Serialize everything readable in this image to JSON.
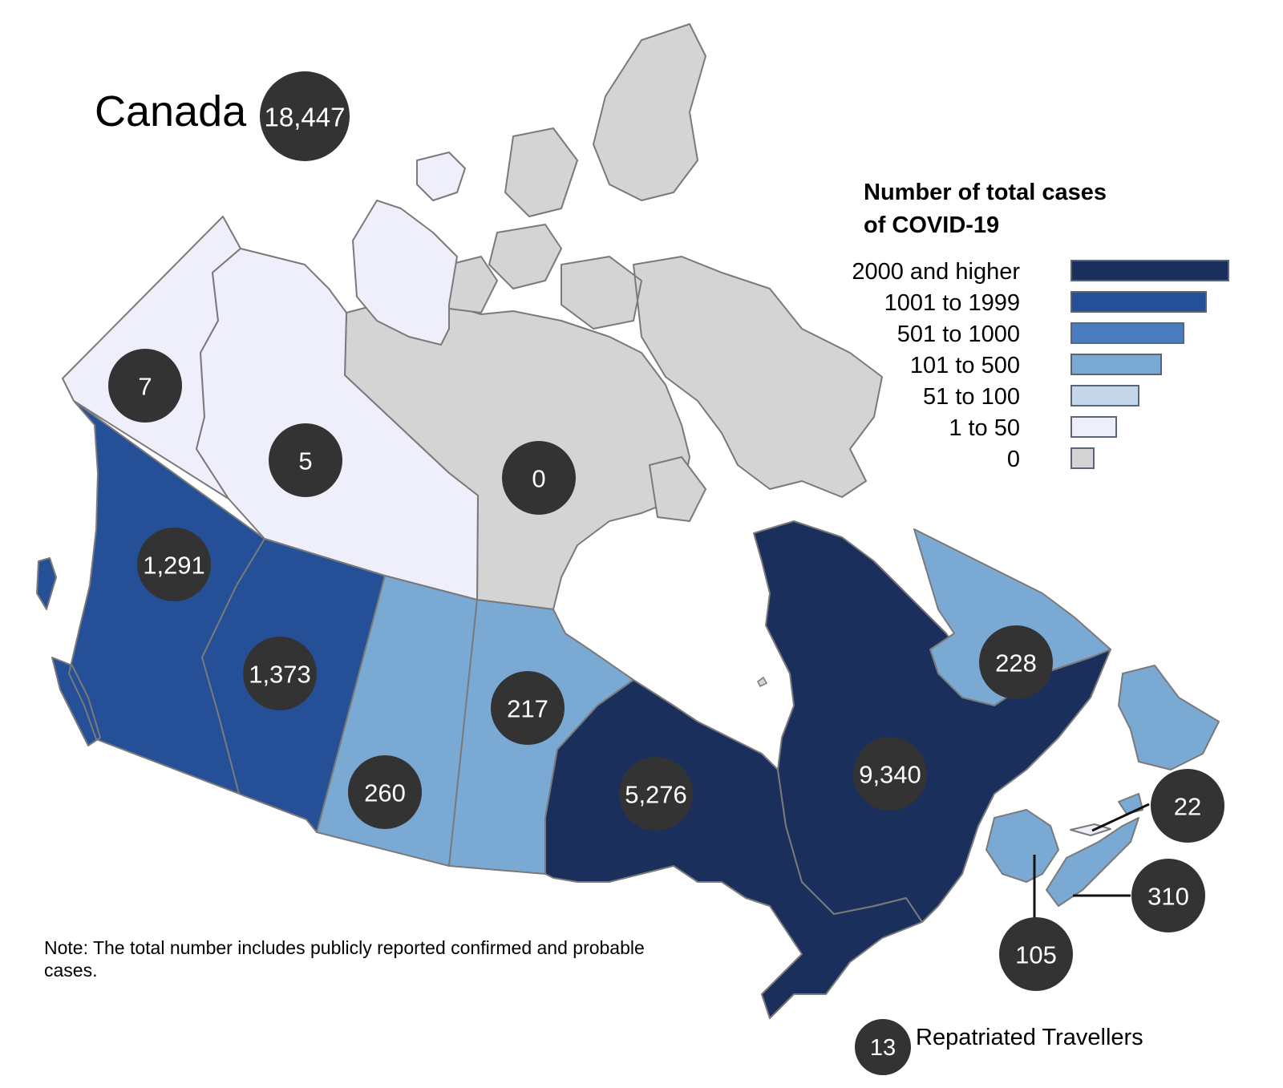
{
  "title": "Canada",
  "total": "18,447",
  "legend": {
    "title_lines": [
      "Number of total cases",
      "of COVID-19"
    ],
    "items": [
      {
        "label": "2000 and higher",
        "color": "#1b2f5c"
      },
      {
        "label": "1001 to 1999",
        "color": "#254f96"
      },
      {
        "label": "501 to 1000",
        "color": "#4a7cbf"
      },
      {
        "label": "101 to 500",
        "color": "#7aaad4"
      },
      {
        "label": "51 to 100",
        "color": "#c3d6ea"
      },
      {
        "label": "1 to 50",
        "color": "#eeeffb"
      },
      {
        "label": "0",
        "color": "#d4d4d4"
      }
    ]
  },
  "regions": [
    {
      "name": "Yukon",
      "cases": "7",
      "category": "1 to 50"
    },
    {
      "name": "Northwest Territories",
      "cases": "5",
      "category": "1 to 50"
    },
    {
      "name": "Nunavut",
      "cases": "0",
      "category": "0"
    },
    {
      "name": "British Columbia",
      "cases": "1,291",
      "category": "1001 to 1999"
    },
    {
      "name": "Alberta",
      "cases": "1,373",
      "category": "1001 to 1999"
    },
    {
      "name": "Saskatchewan",
      "cases": "260",
      "category": "101 to 500"
    },
    {
      "name": "Manitoba",
      "cases": "217",
      "category": "101 to 500"
    },
    {
      "name": "Ontario",
      "cases": "5,276",
      "category": "2000 and higher"
    },
    {
      "name": "Quebec",
      "cases": "9,340",
      "category": "2000 and higher"
    },
    {
      "name": "Newfoundland and Labrador",
      "cases": "228",
      "category": "101 to 500"
    },
    {
      "name": "Prince Edward Island",
      "cases": "22",
      "category": "1 to 50"
    },
    {
      "name": "Nova Scotia",
      "cases": "310",
      "category": "101 to 500"
    },
    {
      "name": "New Brunswick",
      "cases": "105",
      "category": "101 to 500"
    }
  ],
  "repatriated": {
    "cases": "13",
    "label": "Repatriated Travellers"
  },
  "note": "Note: The total number includes publicly reported confirmed and probable cases."
}
